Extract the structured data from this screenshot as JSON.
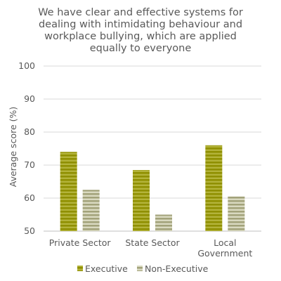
{
  "chart_data": {
    "type": "bar",
    "title_lines": [
      "We have clear and effective systems for",
      "dealing with intimidating behaviour and",
      "workplace bullying, which are applied",
      "equally to everyone"
    ],
    "xlabel": "",
    "ylabel": "Average score (%)",
    "ylim": [
      50,
      100
    ],
    "yticks": [
      50,
      60,
      70,
      80,
      90,
      100
    ],
    "grid": true,
    "legend_position": "bottom",
    "categories": [
      [
        "Private Sector"
      ],
      [
        "State Sector"
      ],
      [
        "Local",
        "Government"
      ]
    ],
    "series": [
      {
        "name": "Executive",
        "values": [
          74,
          68.5,
          76
        ],
        "color": "#8f8f00",
        "stripe": "#b3b33a"
      },
      {
        "name": "Non-Executive",
        "values": [
          62.5,
          55,
          60.5
        ],
        "color": "#a2a27a",
        "stripe": "#d9d9c0"
      }
    ]
  }
}
